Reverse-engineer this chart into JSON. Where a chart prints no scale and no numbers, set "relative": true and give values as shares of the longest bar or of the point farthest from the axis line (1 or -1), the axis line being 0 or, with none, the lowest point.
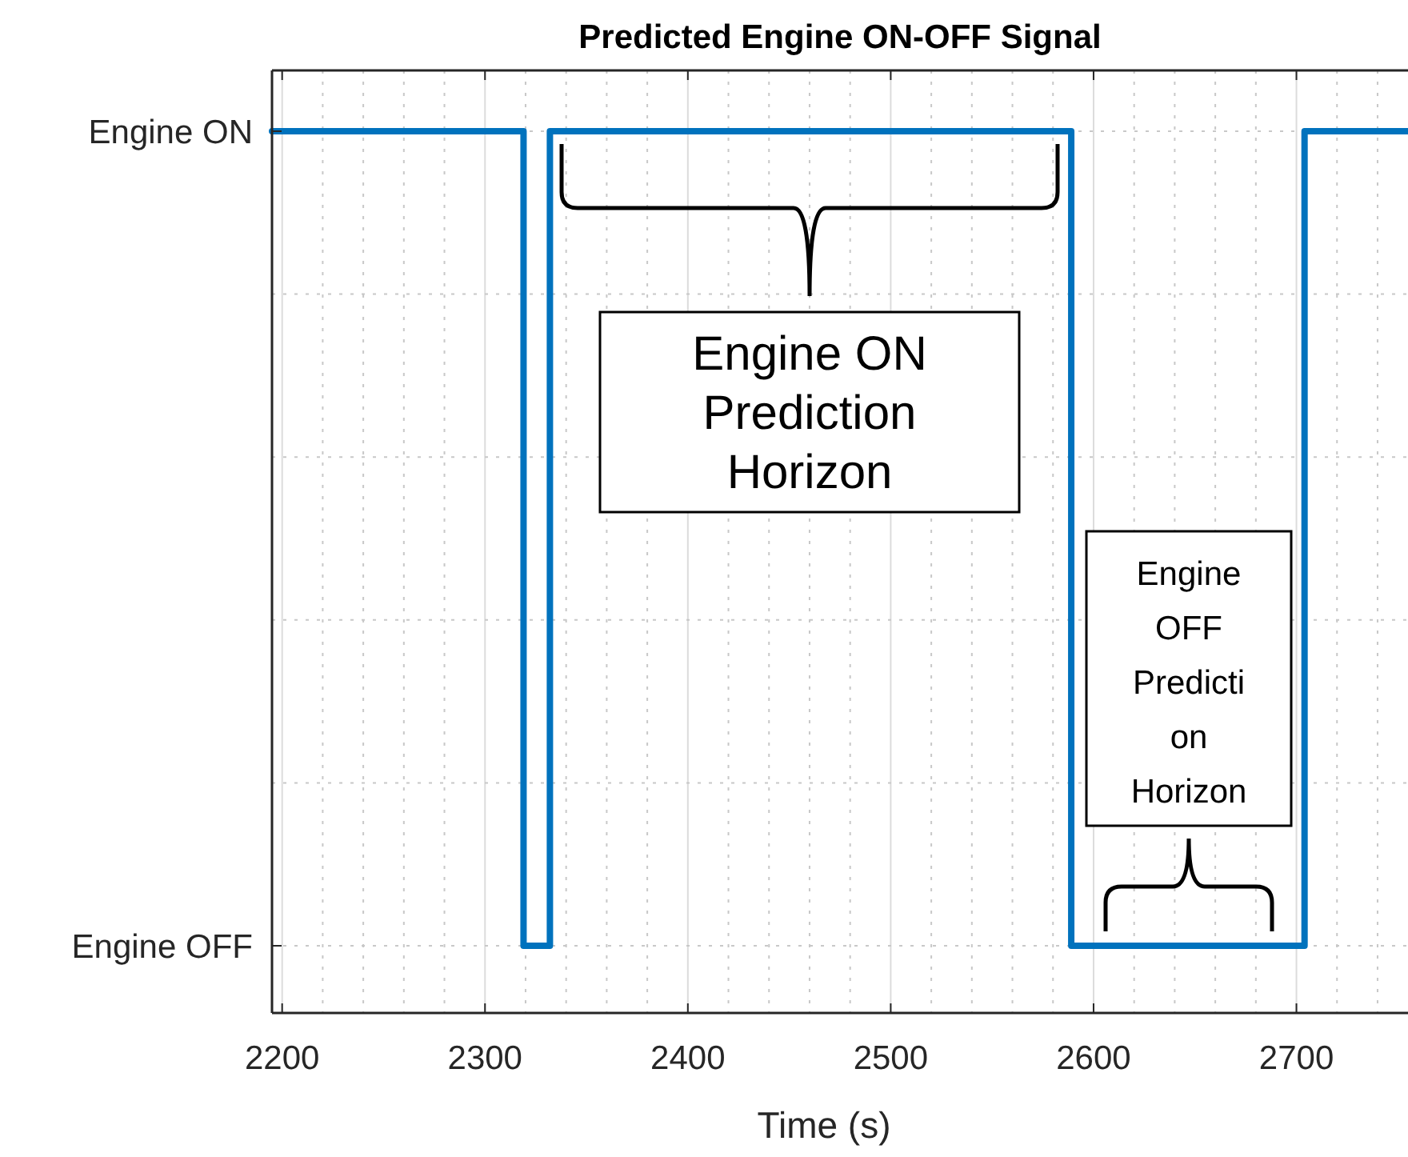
{
  "chart_data": {
    "type": "step",
    "title": "Predicted Engine ON-OFF Signal",
    "xlabel": "Time (s)",
    "x": [
      2195,
      2319,
      2319,
      2332,
      2332,
      2589,
      2589,
      2704,
      2704,
      2755
    ],
    "series": [
      {
        "color": "#0072bd",
        "values": [
          1,
          1,
          0,
          0,
          1,
          1,
          0,
          0,
          1,
          1
        ]
      }
    ],
    "relative": true,
    "xlim": [
      2195,
      2755
    ],
    "xticks": [
      2200,
      {
        "value": 2220,
        "label": null
      },
      {
        "value": 2240,
        "label": null
      },
      {
        "value": 2260,
        "label": null
      },
      {
        "value": 2280,
        "label": null
      },
      2300,
      {
        "value": 2320,
        "label": null
      },
      {
        "value": 2340,
        "label": null
      },
      {
        "value": 2360,
        "label": null
      },
      {
        "value": 2380,
        "label": null
      },
      2400,
      {
        "value": 2420,
        "label": null
      },
      {
        "value": 2440,
        "label": null
      },
      {
        "value": 2460,
        "label": null
      },
      {
        "value": 2480,
        "label": null
      },
      2500,
      {
        "value": 2520,
        "label": null
      },
      {
        "value": 2540,
        "label": null
      },
      {
        "value": 2560,
        "label": null
      },
      {
        "value": 2580,
        "label": null
      },
      2600,
      {
        "value": 2620,
        "label": null
      },
      {
        "value": 2640,
        "label": null
      },
      {
        "value": 2660,
        "label": null
      },
      {
        "value": 2680,
        "label": null
      },
      2700,
      {
        "value": 2720,
        "label": null
      },
      {
        "value": 2740,
        "label": null
      }
    ],
    "grid": true,
    "marker": "none",
    "line_style": "solid",
    "annotations": [
      "Engine ON",
      "Engine OFF",
      "Engine ON Prediction Horizon",
      "Engine OFF Prediction Horizon"
    ]
  }
}
